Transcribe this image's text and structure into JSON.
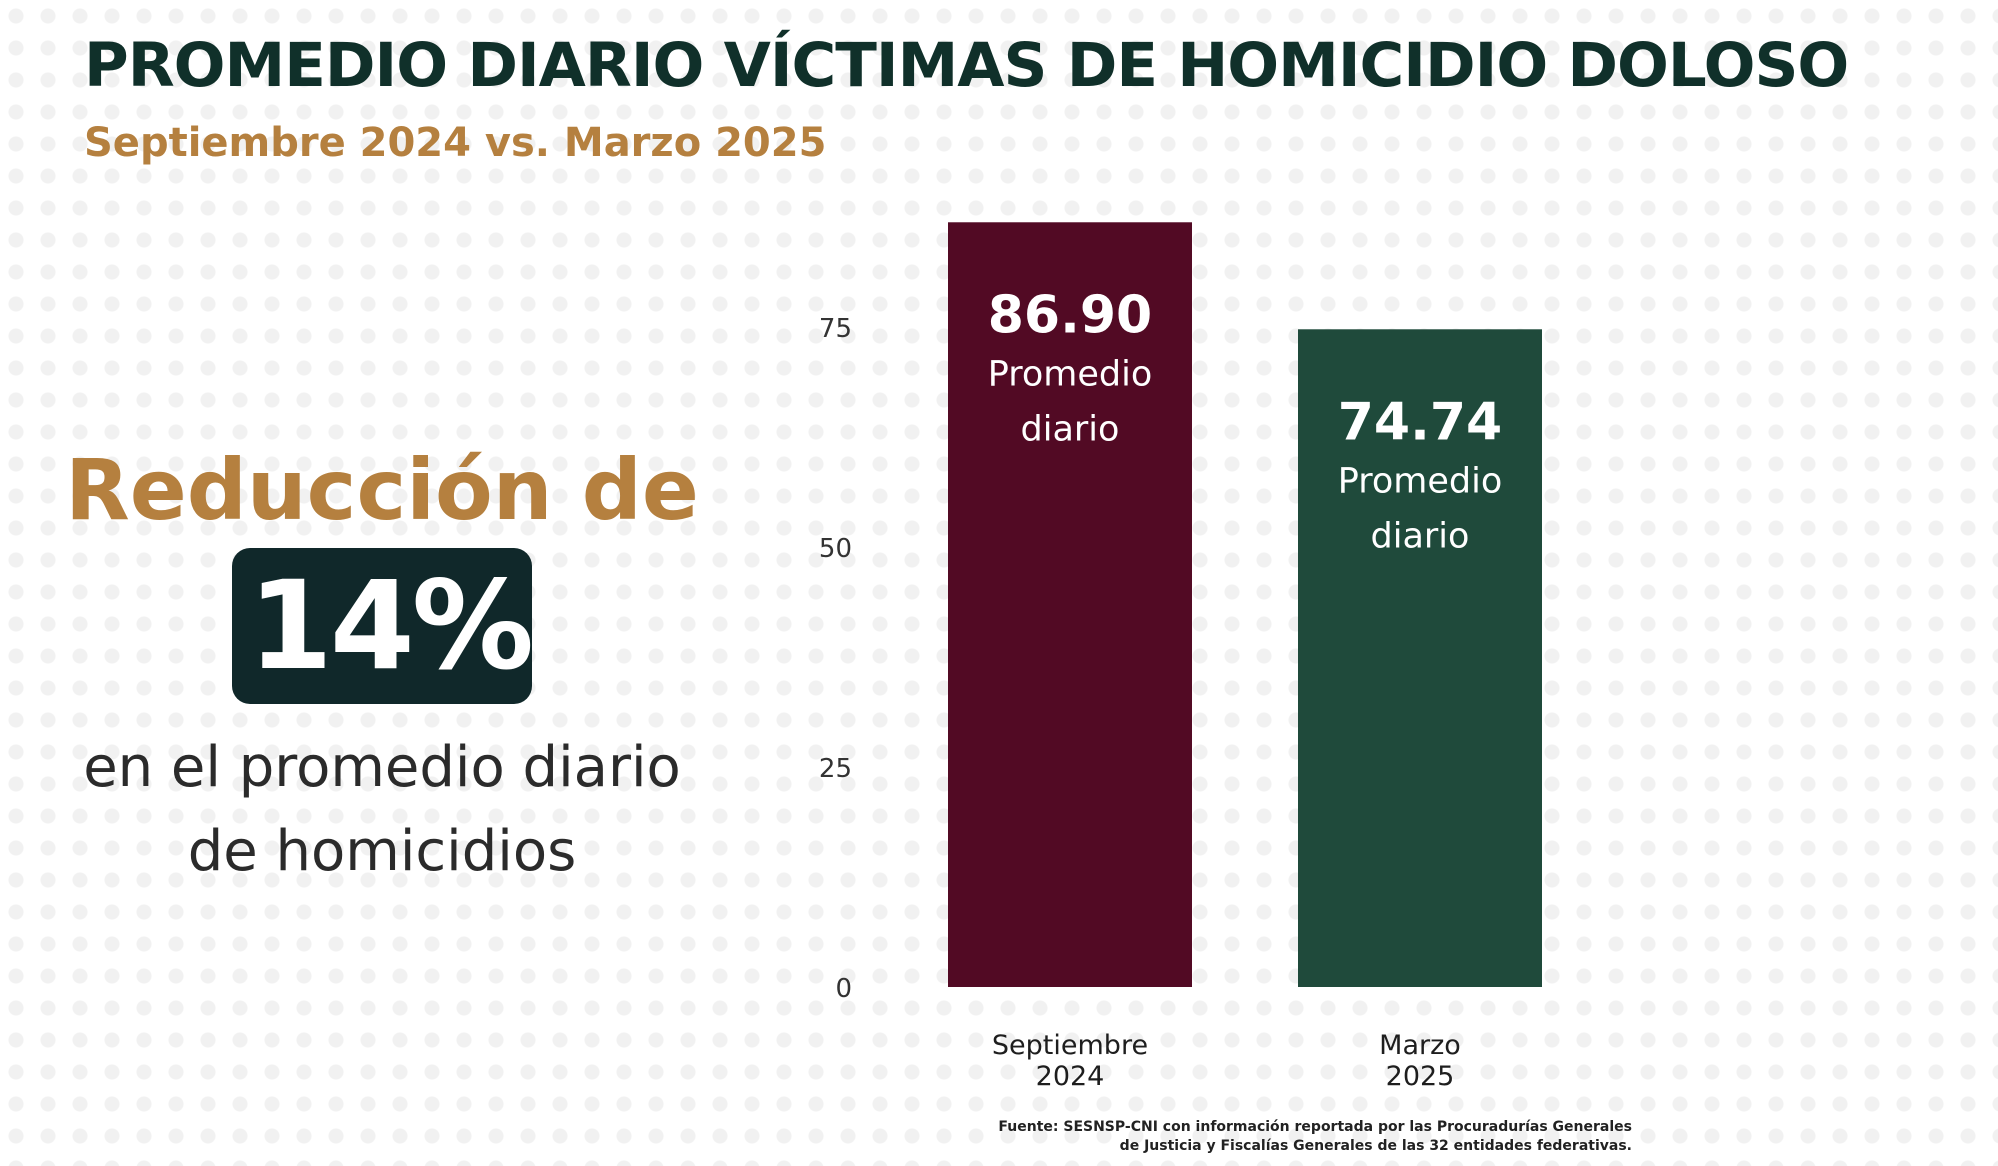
{
  "header": {
    "title": "PROMEDIO DIARIO VÍCTIMAS DE HOMICIDIO DOLOSO",
    "subtitle": "Septiembre 2024 vs. Marzo 2025"
  },
  "summary": {
    "heading": "Reducción de",
    "percent": "14%",
    "desc_line1": "en el promedio diario",
    "desc_line2": "de homicidios"
  },
  "colors": {
    "title": "#10302a",
    "accent_gold": "#b5803f",
    "badge_bg": "#10282a",
    "bar_sep_2024": "#520a24",
    "bar_mar_2025": "#1f4a3b"
  },
  "chart_data": {
    "type": "bar",
    "categories": [
      [
        "Septiembre",
        "2024"
      ],
      [
        "Marzo",
        "2025"
      ]
    ],
    "values": [
      86.9,
      74.74
    ],
    "value_labels": [
      "86.90",
      "74.74"
    ],
    "bar_caption": [
      "Promedio",
      "diario"
    ],
    "bar_colors": [
      "#520a24",
      "#1f4a3b"
    ],
    "yticks": [
      "0",
      "25",
      "50",
      "75"
    ],
    "ylim": [
      0,
      87
    ],
    "grid": false,
    "legend": "none"
  },
  "source": {
    "line1": "Fuente: SESNSP-CNI con información reportada por las Procuradurías Generales",
    "line2": "de Justicia y Fiscalías Generales de las 32 entidades federativas."
  }
}
